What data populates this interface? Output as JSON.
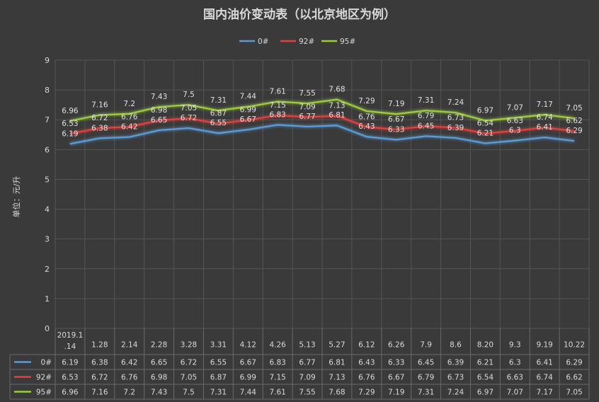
{
  "chart_data": {
    "type": "line",
    "title": "国内油价变动表（以北京地区为例）",
    "ylabel": "单位：元/升",
    "ylim": [
      0,
      9
    ],
    "yticks": [
      0,
      1,
      2,
      3,
      4,
      5,
      6,
      7,
      8,
      9
    ],
    "grid": true,
    "legend_position": "top",
    "categories": [
      "2019.1.14",
      "1.28",
      "2.14",
      "2.28",
      "3.28",
      "3.31",
      "4.12",
      "4.26",
      "5.13",
      "5.27",
      "6.12",
      "6.26",
      "7.9",
      "8.6",
      "8.20",
      "9.3",
      "9.19",
      "10.22"
    ],
    "category_lines": [
      [
        "2019.1",
        ".14"
      ],
      [
        "1.28"
      ],
      [
        "2.14"
      ],
      [
        "2.28"
      ],
      [
        "3.28"
      ],
      [
        "3.31"
      ],
      [
        "4.12"
      ],
      [
        "4.26"
      ],
      [
        "5.13"
      ],
      [
        "5.27"
      ],
      [
        "6.12"
      ],
      [
        "6.26"
      ],
      [
        "7.9"
      ],
      [
        "8.6"
      ],
      [
        "8.20"
      ],
      [
        "9.3"
      ],
      [
        "9.19"
      ],
      [
        "10.22"
      ]
    ],
    "series": [
      {
        "name": "0#",
        "color": "#5b9bd5",
        "values": [
          6.19,
          6.38,
          6.42,
          6.65,
          6.72,
          6.55,
          6.67,
          6.83,
          6.77,
          6.81,
          6.43,
          6.33,
          6.45,
          6.39,
          6.21,
          6.3,
          6.41,
          6.29
        ]
      },
      {
        "name": "92#",
        "color": "#e0413c",
        "values": [
          6.53,
          6.72,
          6.76,
          6.98,
          7.05,
          6.87,
          6.99,
          7.15,
          7.09,
          7.13,
          6.76,
          6.67,
          6.79,
          6.73,
          6.54,
          6.63,
          6.74,
          6.62
        ]
      },
      {
        "name": "95#",
        "color": "#9ccc3c",
        "values": [
          6.96,
          7.16,
          7.2,
          7.43,
          7.5,
          7.31,
          7.44,
          7.61,
          7.55,
          7.68,
          7.29,
          7.19,
          7.31,
          7.24,
          6.97,
          7.07,
          7.17,
          7.05
        ]
      }
    ]
  }
}
